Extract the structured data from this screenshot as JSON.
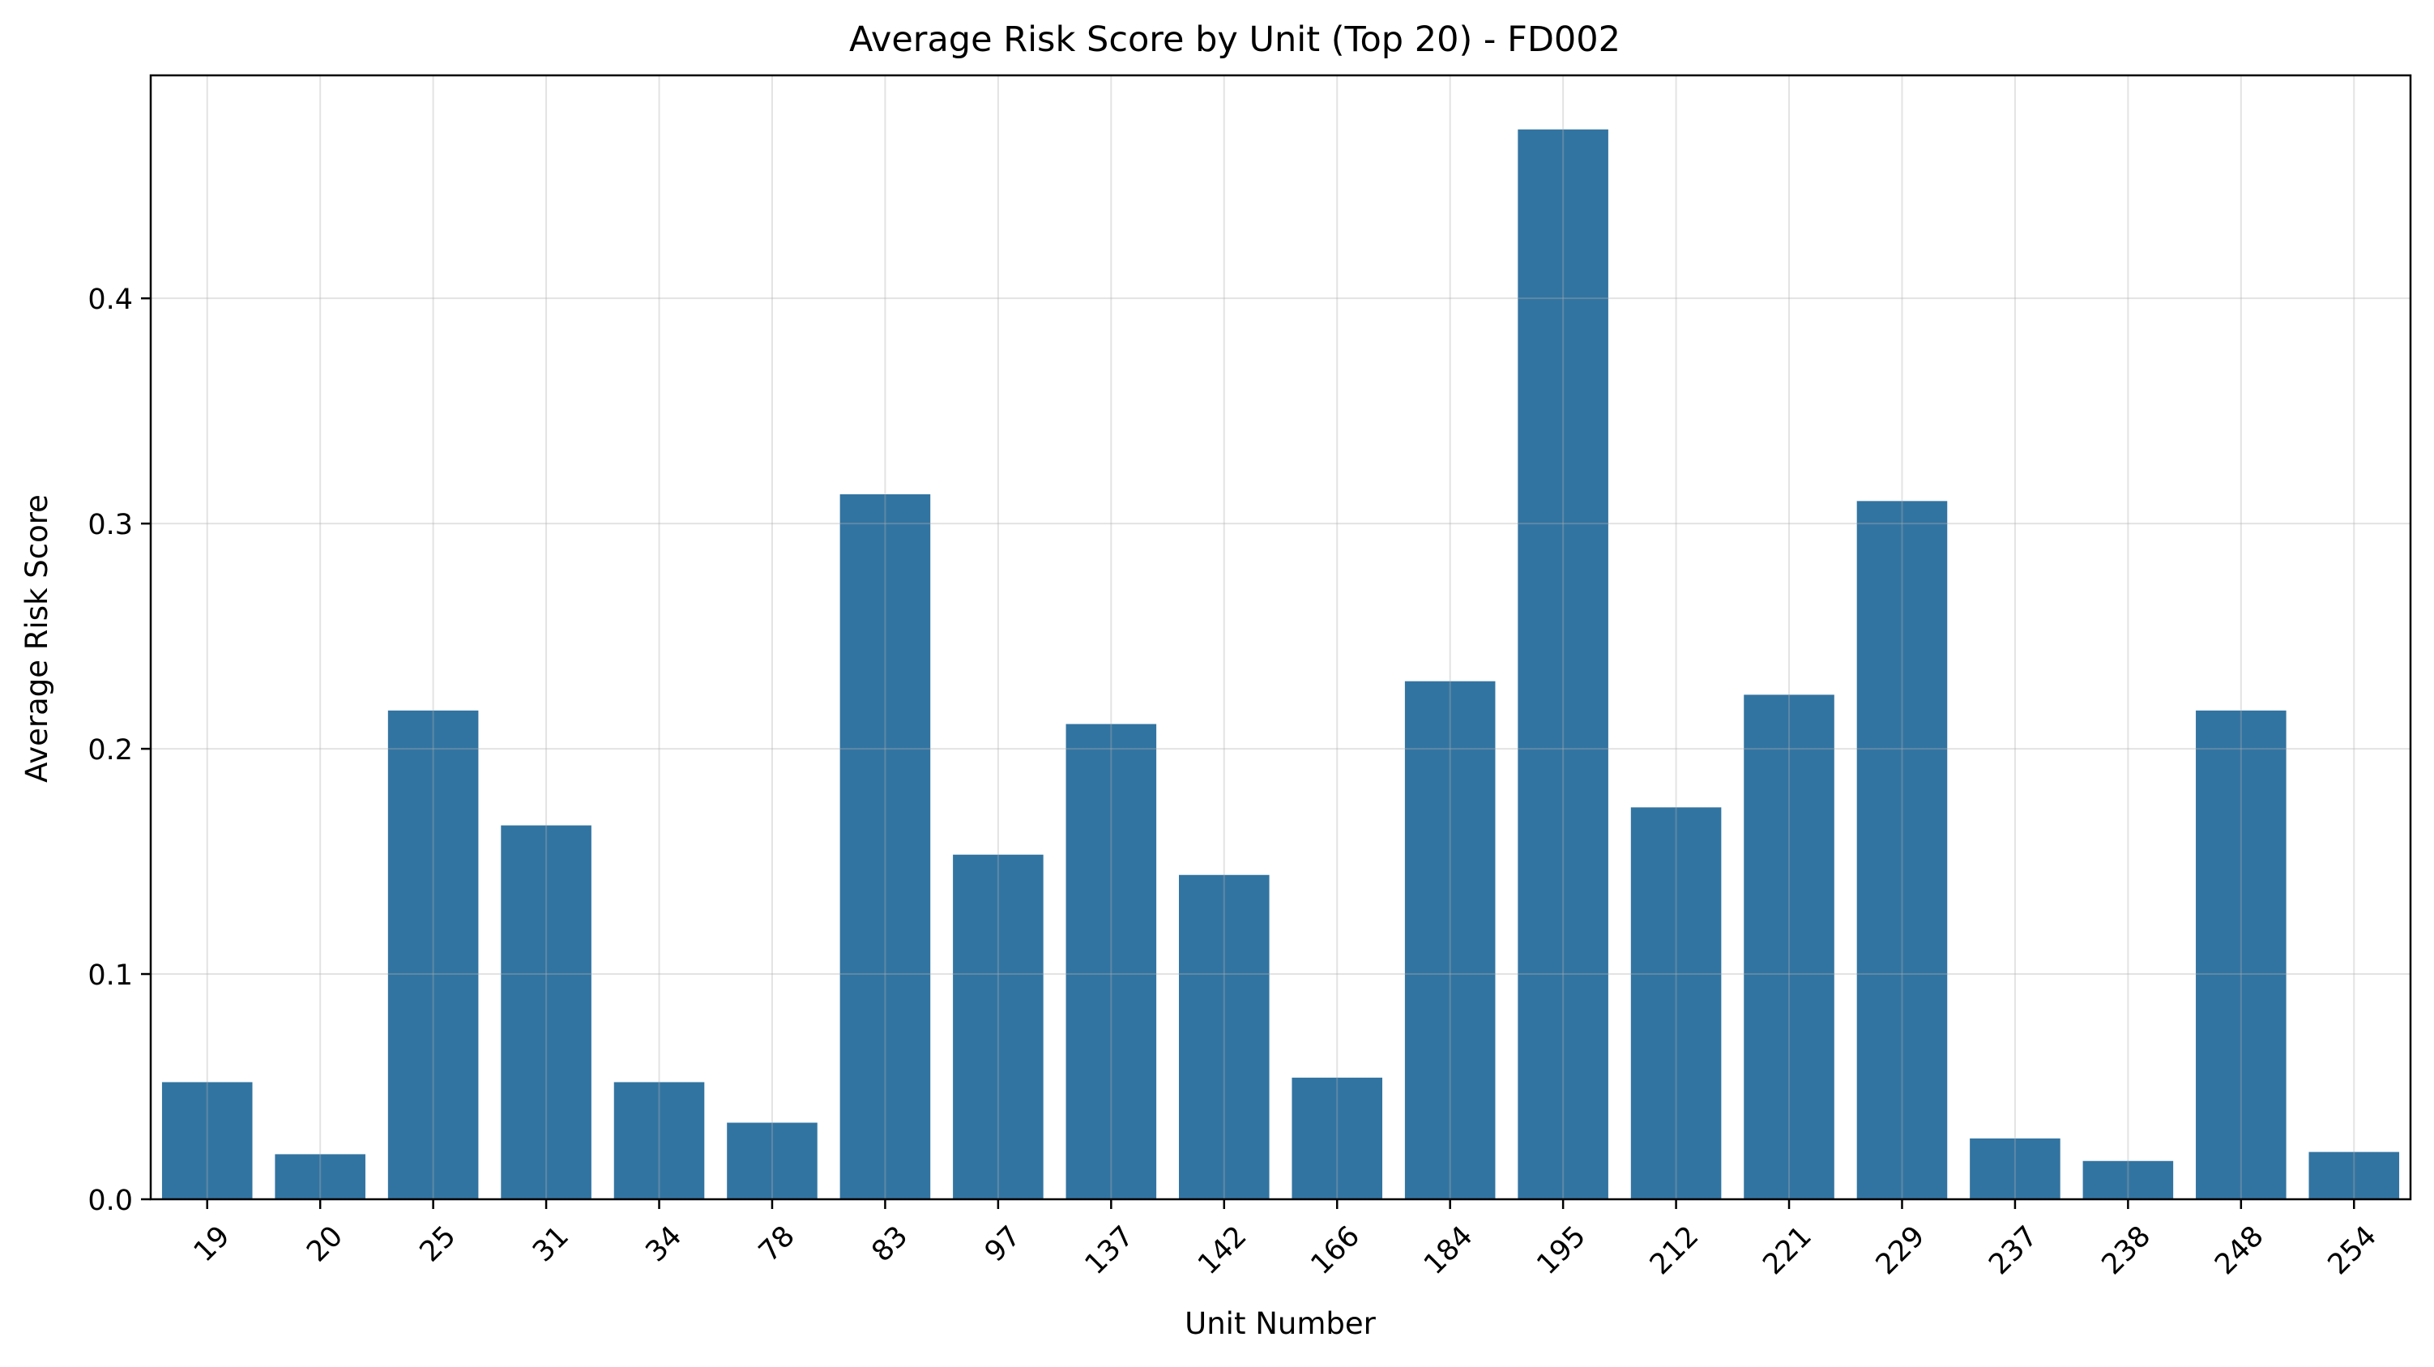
{
  "chart_data": {
    "type": "bar",
    "title": "Average Risk Score by Unit (Top 20) - FD002",
    "xlabel": "Unit Number",
    "ylabel": "Average Risk Score",
    "categories": [
      "19",
      "20",
      "25",
      "31",
      "34",
      "78",
      "83",
      "97",
      "137",
      "142",
      "166",
      "184",
      "195",
      "212",
      "221",
      "229",
      "237",
      "238",
      "248",
      "254"
    ],
    "values": [
      0.052,
      0.02,
      0.217,
      0.166,
      0.052,
      0.034,
      0.313,
      0.153,
      0.211,
      0.144,
      0.054,
      0.23,
      0.475,
      0.174,
      0.224,
      0.31,
      0.027,
      0.017,
      0.217,
      0.021
    ],
    "yticks": [
      0.0,
      0.1,
      0.2,
      0.3,
      0.4
    ],
    "ytick_labels": [
      "0.0",
      "0.1",
      "0.2",
      "0.3",
      "0.4"
    ],
    "ylim": [
      0,
      0.499
    ],
    "grid": true,
    "legend": false,
    "bar_color": "#3274a1",
    "grid_color": "#e3e3e3"
  }
}
